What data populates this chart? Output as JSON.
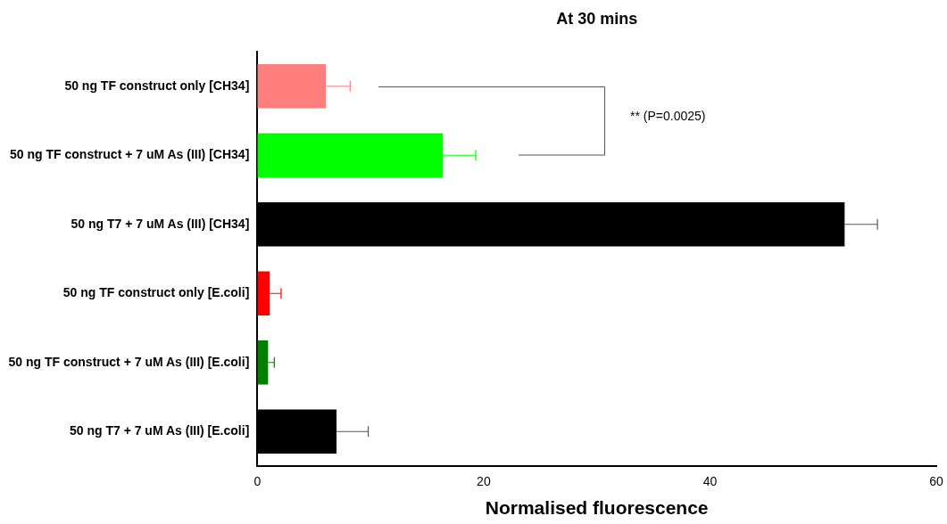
{
  "chart_data": {
    "type": "bar",
    "orientation": "horizontal",
    "title": "At 30 mins",
    "xlabel": "Normalised fluorescence",
    "categories": [
      "50 ng TF construct only [CH34]",
      "50 ng TF construct + 7 uM As (III) [CH34]",
      "50 ng T7 + 7 uM As (III) [CH34]",
      "50 ng TF construct only [E.coli]",
      "50 ng TF construct + 7 uM As (III) [E.coli]",
      "50 ng T7 + 7 uM As (III) [E.coli]"
    ],
    "values": [
      6.05,
      16.4,
      51.9,
      1.1,
      0.95,
      7.0
    ],
    "errors": [
      [
        6.05,
        8.2
      ],
      [
        16.4,
        19.3
      ],
      [
        51.9,
        54.8
      ],
      [
        1.1,
        2.1
      ],
      [
        0.95,
        1.5
      ],
      [
        7.0,
        9.8
      ]
    ],
    "colors": [
      "#ff7f7f",
      "#00ff00",
      "#000000",
      "#ff0000",
      "#007f00",
      "#000000"
    ],
    "xlim": [
      0,
      60
    ],
    "xticks": [
      0,
      20,
      40,
      60
    ],
    "grid": false,
    "legend": false,
    "annotations": [
      "** (P=0.0025)"
    ]
  }
}
